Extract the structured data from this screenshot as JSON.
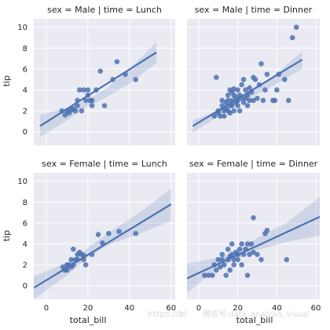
{
  "watermark": {
    "left": "https://bl",
    "right": "微信号:data_analysis_visual"
  },
  "chart_data": {
    "type": "scatter",
    "layout": "facet-grid",
    "row_var": "sex",
    "col_var": "time",
    "xlabel": "total_bill",
    "ylabel": "tip",
    "xlim": [
      -6,
      62
    ],
    "ylim": [
      -1.3,
      10.8
    ],
    "xticks": [
      0,
      20,
      40,
      60
    ],
    "yticks": [
      0,
      2,
      4,
      6,
      8,
      10
    ],
    "colors": {
      "background": "#eaeaf2",
      "grid": "#ffffff",
      "points": "#4c72b0",
      "band": "#4c72b0"
    },
    "panels": [
      {
        "title": "sex = Male | time = Lunch",
        "line": [
          [
            -3,
            0.55
          ],
          [
            53,
            7.6
          ]
        ],
        "ci_upper": [
          [
            -3,
            1.6
          ],
          [
            10,
            2.3
          ],
          [
            18,
            2.9
          ],
          [
            28,
            4.0
          ],
          [
            40,
            6.0
          ],
          [
            53,
            8.6
          ]
        ],
        "ci_lower": [
          [
            -3,
            -0.5
          ],
          [
            10,
            1.1
          ],
          [
            18,
            2.2
          ],
          [
            28,
            3.2
          ],
          [
            40,
            4.6
          ],
          [
            53,
            6.6
          ]
        ],
        "points": [
          [
            7.5,
            2.0
          ],
          [
            9,
            1.6
          ],
          [
            10,
            2.0
          ],
          [
            11,
            1.8
          ],
          [
            12,
            2.1
          ],
          [
            13,
            2.2
          ],
          [
            14,
            2.0
          ],
          [
            15,
            2.5
          ],
          [
            15,
            3.0
          ],
          [
            16,
            4.0
          ],
          [
            17,
            2.0
          ],
          [
            18,
            4.0
          ],
          [
            19,
            3.0
          ],
          [
            20,
            4.0
          ],
          [
            20,
            3.5
          ],
          [
            21,
            3.0
          ],
          [
            22,
            3.0
          ],
          [
            22,
            2.5
          ],
          [
            24,
            4.0
          ],
          [
            26,
            5.8
          ],
          [
            28,
            2.5
          ],
          [
            32,
            5.0
          ],
          [
            34,
            6.7
          ],
          [
            38,
            5.5
          ],
          [
            43,
            5.0
          ]
        ]
      },
      {
        "title": "sex = Male | time = Dinner",
        "line": [
          [
            -3,
            0.55
          ],
          [
            53,
            6.9
          ]
        ],
        "ci_upper": [
          [
            -3,
            1.1
          ],
          [
            10,
            2.0
          ],
          [
            20,
            3.1
          ],
          [
            30,
            4.3
          ],
          [
            40,
            5.6
          ],
          [
            53,
            7.7
          ]
        ],
        "ci_lower": [
          [
            -3,
            -0.1
          ],
          [
            10,
            1.5
          ],
          [
            20,
            2.7
          ],
          [
            30,
            3.6
          ],
          [
            40,
            4.6
          ],
          [
            53,
            6.0
          ]
        ],
        "points": [
          [
            8,
            1.5
          ],
          [
            9,
            5.2
          ],
          [
            10,
            1.8
          ],
          [
            10,
            2.0
          ],
          [
            11,
            1.5
          ],
          [
            12,
            2.5
          ],
          [
            12,
            3.0
          ],
          [
            13,
            2.0
          ],
          [
            13,
            1.5
          ],
          [
            14,
            2.2
          ],
          [
            14,
            2.8
          ],
          [
            15,
            3.5
          ],
          [
            15,
            2.0
          ],
          [
            15,
            3.0
          ],
          [
            16,
            2.5
          ],
          [
            16,
            1.8
          ],
          [
            16,
            4.0
          ],
          [
            17,
            3.0
          ],
          [
            17,
            2.5
          ],
          [
            17,
            3.8
          ],
          [
            18,
            2.0
          ],
          [
            18,
            3.5
          ],
          [
            18,
            4.1
          ],
          [
            19,
            2.8
          ],
          [
            19,
            3.3
          ],
          [
            20,
            3.0
          ],
          [
            20,
            2.5
          ],
          [
            20,
            4.0
          ],
          [
            21,
            3.5
          ],
          [
            21,
            2.0
          ],
          [
            22,
            3.2
          ],
          [
            22,
            4.5
          ],
          [
            23,
            2.8
          ],
          [
            23,
            5.0
          ],
          [
            24,
            3.2
          ],
          [
            24,
            4.0
          ],
          [
            25,
            3.5
          ],
          [
            25,
            2.5
          ],
          [
            26,
            3.0
          ],
          [
            26,
            4.2
          ],
          [
            27,
            3.8
          ],
          [
            28,
            5.2
          ],
          [
            28,
            3.0
          ],
          [
            29,
            5.0
          ],
          [
            30,
            3.2
          ],
          [
            31,
            4.5
          ],
          [
            32,
            6.5
          ],
          [
            33,
            3.0
          ],
          [
            34,
            4.0
          ],
          [
            35,
            5.5
          ],
          [
            38,
            3.0
          ],
          [
            39,
            3.0
          ],
          [
            40,
            4.0
          ],
          [
            41,
            5.5
          ],
          [
            44,
            5.0
          ],
          [
            46,
            3.0
          ],
          [
            48,
            9.0
          ],
          [
            50,
            10.0
          ]
        ]
      },
      {
        "title": "sex = Female | time = Lunch",
        "line": [
          [
            -6,
            -0.2
          ],
          [
            60,
            7.8
          ]
        ],
        "ci_upper": [
          [
            -6,
            0.9
          ],
          [
            10,
            2.2
          ],
          [
            20,
            3.6
          ],
          [
            30,
            5.1
          ],
          [
            45,
            7.0
          ],
          [
            60,
            9.3
          ]
        ],
        "ci_lower": [
          [
            -6,
            -1.3
          ],
          [
            10,
            1.0
          ],
          [
            20,
            2.7
          ],
          [
            30,
            3.9
          ],
          [
            45,
            5.0
          ],
          [
            60,
            6.2
          ]
        ],
        "points": [
          [
            8,
            1.8
          ],
          [
            9,
            1.5
          ],
          [
            10,
            2.0
          ],
          [
            10,
            1.5
          ],
          [
            11,
            2.0
          ],
          [
            12,
            1.8
          ],
          [
            12,
            2.5
          ],
          [
            13,
            2.0
          ],
          [
            13,
            3.5
          ],
          [
            14,
            2.5
          ],
          [
            15,
            2.5
          ],
          [
            15,
            3.0
          ],
          [
            16,
            3.2
          ],
          [
            17,
            3.0
          ],
          [
            18,
            2.5
          ],
          [
            18,
            2.9
          ],
          [
            19,
            2.0
          ],
          [
            22,
            3.0
          ],
          [
            25,
            4.9
          ],
          [
            27,
            4.1
          ],
          [
            30,
            5.0
          ],
          [
            35,
            5.2
          ],
          [
            43,
            5.0
          ]
        ]
      },
      {
        "title": "sex = Female | time = Dinner",
        "line": [
          [
            -6,
            0.7
          ],
          [
            62,
            6.6
          ]
        ],
        "ci_upper": [
          [
            -6,
            2.1
          ],
          [
            10,
            2.7
          ],
          [
            20,
            3.3
          ],
          [
            30,
            4.6
          ],
          [
            45,
            6.0
          ],
          [
            62,
            8.5
          ]
        ],
        "ci_lower": [
          [
            -6,
            -0.7
          ],
          [
            10,
            1.7
          ],
          [
            20,
            2.6
          ],
          [
            30,
            3.4
          ],
          [
            45,
            4.2
          ],
          [
            62,
            4.8
          ]
        ],
        "points": [
          [
            3,
            1.0
          ],
          [
            5,
            1.0
          ],
          [
            7,
            1.0
          ],
          [
            8,
            2.0
          ],
          [
            9,
            1.5
          ],
          [
            10,
            2.5
          ],
          [
            11,
            1.8
          ],
          [
            12,
            3.0
          ],
          [
            12,
            2.5
          ],
          [
            13,
            2.0
          ],
          [
            14,
            1.0
          ],
          [
            15,
            3.5
          ],
          [
            15,
            2.5
          ],
          [
            16,
            1.5
          ],
          [
            16,
            2.8
          ],
          [
            17,
            4.0
          ],
          [
            17,
            3.0
          ],
          [
            18,
            2.5
          ],
          [
            18,
            2.0
          ],
          [
            19,
            3.2
          ],
          [
            20,
            2.5
          ],
          [
            20,
            3.0
          ],
          [
            21,
            3.5
          ],
          [
            22,
            2.0
          ],
          [
            22,
            4.0
          ],
          [
            23,
            3.0
          ],
          [
            24,
            3.5
          ],
          [
            25,
            4.0
          ],
          [
            25,
            1.0
          ],
          [
            26,
            3.0
          ],
          [
            27,
            4.0
          ],
          [
            28,
            6.5
          ],
          [
            28,
            3.2
          ],
          [
            30,
            3.0
          ],
          [
            32,
            2.5
          ],
          [
            34,
            5.0
          ],
          [
            35,
            5.3
          ],
          [
            45,
            2.5
          ]
        ]
      }
    ]
  }
}
